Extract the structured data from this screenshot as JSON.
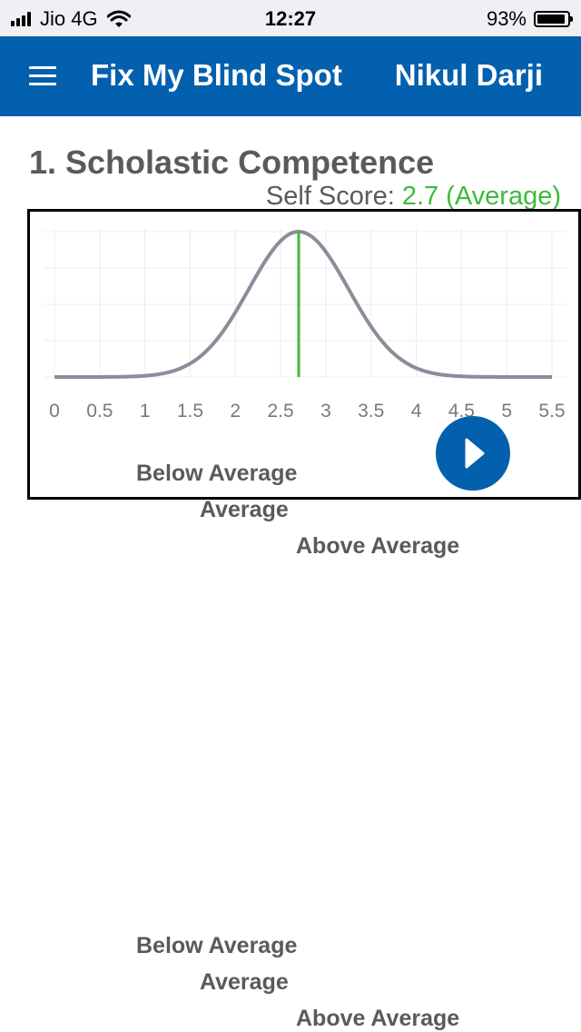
{
  "status_bar": {
    "carrier": "Jio 4G",
    "time": "12:27",
    "battery_percent": "93%",
    "battery_level": 0.93,
    "icons": [
      "signal-icon",
      "wifi-icon",
      "battery-icon"
    ]
  },
  "header": {
    "menu_icon": "menu-icon",
    "title": "Fix My Blind Spot",
    "user": "Nikul Darji"
  },
  "section": {
    "title": "1. Scholastic Competence",
    "self_score_label": "Self Score:",
    "self_score_value": "2.7 (Average)"
  },
  "colors": {
    "header_bg": "#0360ae",
    "curve": "#8b8d9b",
    "marker": "#3dbb3d",
    "text": "#5a5a5a"
  },
  "chart_data": {
    "type": "line",
    "title": "",
    "xlabel": "",
    "ylabel": "",
    "x_ticks": [
      "0",
      "0.5",
      "1",
      "1.5",
      "2",
      "2.5",
      "3",
      "3.5",
      "4",
      "4.5",
      "5",
      "5.5"
    ],
    "xlim": [
      0,
      5.5
    ],
    "curve": {
      "shape": "normal-distribution",
      "mean": 2.7,
      "sd": 0.55,
      "x_start": 0,
      "x_end": 5.5
    },
    "marker": {
      "x": 2.7
    },
    "grid": true,
    "legend": [
      "Below Average",
      "Average",
      "Above Average"
    ]
  },
  "play_icon": "play-icon",
  "legend_groups": [
    {
      "below": "Below Average",
      "average": "Average",
      "above": "Above Average"
    },
    {
      "below": "Below Average",
      "average": "Average",
      "above": "Above Average"
    }
  ]
}
